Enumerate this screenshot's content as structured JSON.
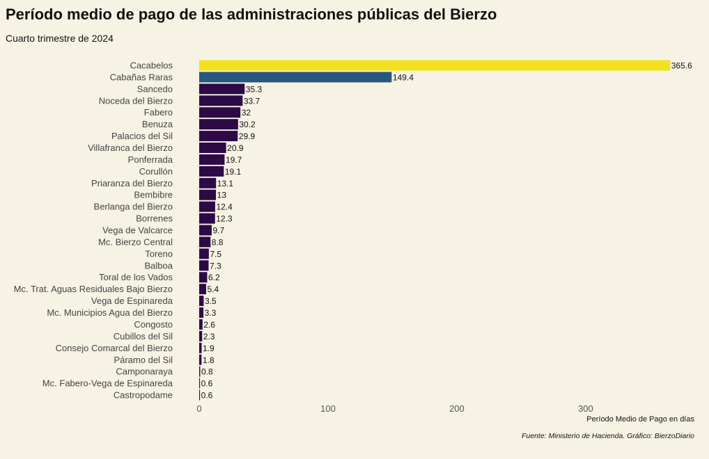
{
  "header": {
    "title": "Período medio de pago de las administraciones públicas del Bierzo",
    "subtitle": "Cuarto trimestre de 2024"
  },
  "footer": {
    "caption": "Fuente: Ministerio de Hacienda. Gráfico: BierzoDiario"
  },
  "colors": {
    "background": "#f6f2e4",
    "bar_default": "#2d0a45",
    "bar_highest": "#f2e21e",
    "bar_second": "#265880"
  },
  "chart_data": {
    "type": "bar",
    "orientation": "horizontal",
    "title": "Período medio de pago de las administraciones públicas del Bierzo",
    "subtitle": "Cuarto trimestre de 2024",
    "xlabel": "Período Medio de Pago en días",
    "ylabel": "",
    "xlim": [
      0,
      380
    ],
    "xticks": [
      0,
      100,
      200,
      300
    ],
    "grid": false,
    "categories": [
      "Cacabelos",
      "Cabañas Raras",
      "Sancedo",
      "Noceda del Bierzo",
      "Fabero",
      "Benuza",
      "Palacios del Sil",
      "Villafranca del Bierzo",
      "Ponferrada",
      "Corullón",
      "Priaranza del Bierzo",
      "Bembibre",
      "Berlanga del Bierzo",
      "Borrenes",
      "Vega de Valcarce",
      "Mc. Bierzo Central",
      "Toreno",
      "Balboa",
      "Toral de los Vados",
      "Mc. Trat. Aguas Residuales Bajo Bierzo",
      "Vega de Espinareda",
      "Mc. Municipios Agua del Bierzo",
      "Congosto",
      "Cubillos del Sil",
      "Consejo Comarcal del Bierzo",
      "Páramo del Sil",
      "Camponaraya",
      "Mc. Fabero-Vega de Espinareda",
      "Castropodame"
    ],
    "values": [
      365.6,
      149.4,
      35.3,
      33.7,
      32,
      30.2,
      29.9,
      20.9,
      19.7,
      19.1,
      13.1,
      13,
      12.4,
      12.3,
      9.7,
      8.8,
      7.5,
      7.3,
      6.2,
      5.4,
      3.5,
      3.3,
      2.6,
      2.3,
      1.9,
      1.8,
      0.8,
      0.6,
      0.6
    ],
    "value_labels": [
      "365.6",
      "149.4",
      "35.3",
      "33.7",
      "32",
      "30.2",
      "29.9",
      "20.9",
      "19.7",
      "19.1",
      "13.1",
      "13",
      "12.4",
      "12.3",
      "9.7",
      "8.8",
      "7.5",
      "7.3",
      "6.2",
      "5.4",
      "3.5",
      "3.3",
      "2.6",
      "2.3",
      "1.9",
      "1.8",
      "0.8",
      "0.6",
      "0.6"
    ]
  }
}
